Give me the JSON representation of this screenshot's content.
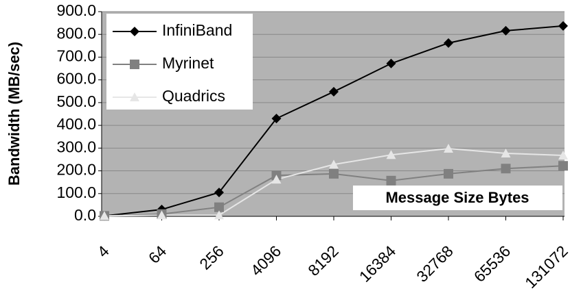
{
  "chart_data": {
    "type": "line",
    "y_label": "Bandwidth (MB/sec)",
    "x_label": "Message Size Bytes",
    "categories": [
      "4",
      "64",
      "256",
      "4096",
      "8192",
      "16384",
      "32768",
      "65536",
      "131072"
    ],
    "series": [
      {
        "name": "InfiniBand",
        "color": "#000000",
        "marker": "diamond",
        "values": [
          2,
          30,
          105,
          430,
          548,
          672,
          762,
          816,
          837
        ]
      },
      {
        "name": "Myrinet",
        "color": "#808080",
        "marker": "square",
        "values": [
          2,
          10,
          40,
          180,
          187,
          157,
          187,
          210,
          222
        ]
      },
      {
        "name": "Quadrics",
        "color": "#e6e6e6",
        "marker": "triangle",
        "values": [
          2,
          5,
          5,
          162,
          228,
          270,
          298,
          277,
          268
        ]
      }
    ],
    "ylim": [
      0,
      900
    ],
    "yticks": [
      {
        "value": 0,
        "label": "0.0"
      },
      {
        "value": 100,
        "label": "100.0"
      },
      {
        "value": 200,
        "label": "200.0"
      },
      {
        "value": 300,
        "label": "300.0"
      },
      {
        "value": 400,
        "label": "400.0"
      },
      {
        "value": 500,
        "label": "500.0"
      },
      {
        "value": 600,
        "label": "600.0"
      },
      {
        "value": 700,
        "label": "700.0"
      },
      {
        "value": 800,
        "label": "800.0"
      },
      {
        "value": 900,
        "label": "900.0"
      }
    ],
    "grid": true,
    "legend": "top-left"
  }
}
